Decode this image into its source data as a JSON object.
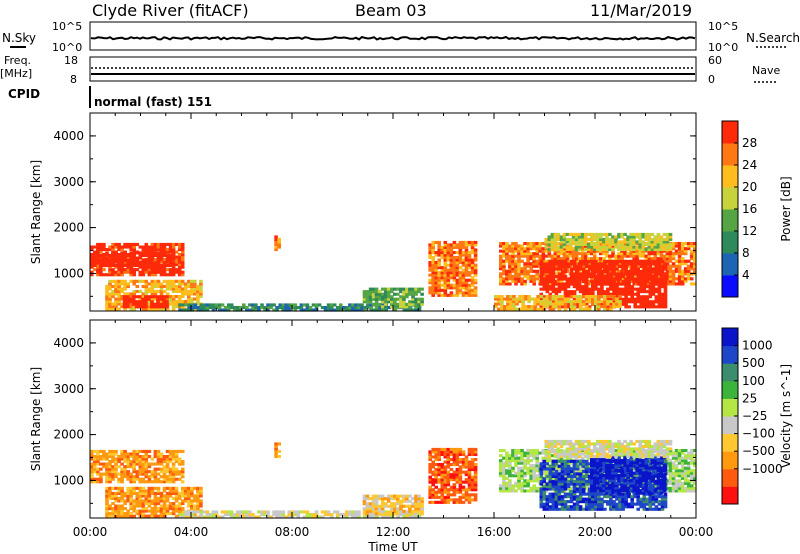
{
  "header": {
    "station": "Clyde River (fitACF)",
    "beam": "Beam 03",
    "date": "11/Mar/2019"
  },
  "aux_panels": {
    "nsky_label": "N.Sky",
    "nsky_tick_top": "10^5",
    "nsky_tick_bottom": "10^0",
    "nsearch_label": "N.Search",
    "nsearch_tick_top": "10^5",
    "nsearch_tick_bottom": "10^0",
    "freq_label": "Freq.",
    "freq_unit": "[MHz]",
    "freq_tick_top": "18",
    "freq_tick_bottom": "8",
    "nave_label": "Nave",
    "nave_tick_top": "60",
    "nave_tick_bottom": "0",
    "cpid_label": "CPID",
    "cpid_value": "normal (fast) 151"
  },
  "colors": {
    "power_scale": [
      "#0a0aff",
      "#1e64b4",
      "#2e8a5a",
      "#55a545",
      "#c8d23c",
      "#ffbe1e",
      "#ff7814",
      "#ff2a0a"
    ],
    "velocity_scale": [
      "#ff1010",
      "#ff5a10",
      "#ff9a10",
      "#ffc830",
      "#c8c8c8",
      "#b4e646",
      "#3cb43c",
      "#3c8c6e",
      "#1e46c8",
      "#0a14c8"
    ]
  },
  "chart_data": [
    {
      "type": "heatmap",
      "name": "power-panel",
      "ylabel": "Slant Range [km]",
      "xlabel": "",
      "ylim": [
        180,
        4500
      ],
      "xlim": [
        "00:00",
        "24:00"
      ],
      "yticks": [
        "1000",
        "2000",
        "3000",
        "4000"
      ],
      "xticks": [
        "00:00",
        "04:00",
        "08:00",
        "12:00",
        "16:00",
        "20:00",
        "00:00"
      ],
      "colorbar": {
        "label": "Power [dB]",
        "ticks": [
          "4",
          "8",
          "12",
          "16",
          "20",
          "24",
          "28"
        ]
      },
      "regions": [
        {
          "t0": 0.0,
          "t1": 3.7,
          "r0": 950,
          "r1": 1650,
          "level": 7
        },
        {
          "t0": 0.0,
          "t1": 3.3,
          "r0": 1150,
          "r1": 1450,
          "level": 8
        },
        {
          "t0": 0.6,
          "t1": 4.4,
          "r0": 200,
          "r1": 850,
          "level": 5
        },
        {
          "t0": 1.3,
          "t1": 3.1,
          "r0": 250,
          "r1": 500,
          "level": 8
        },
        {
          "t0": 3.5,
          "t1": 13.0,
          "r0": 180,
          "r1": 320,
          "level": 2
        },
        {
          "t0": 10.8,
          "t1": 13.1,
          "r0": 250,
          "r1": 650,
          "level": 3
        },
        {
          "t0": 13.4,
          "t1": 15.2,
          "r0": 500,
          "r1": 1700,
          "level": 6
        },
        {
          "t0": 16.2,
          "t1": 24.0,
          "r0": 750,
          "r1": 1650,
          "level": 6
        },
        {
          "t0": 17.8,
          "t1": 22.8,
          "r0": 250,
          "r1": 1250,
          "level": 8
        },
        {
          "t0": 18.0,
          "t1": 23.0,
          "r0": 1500,
          "r1": 1850,
          "level": 4
        },
        {
          "t0": 16.0,
          "t1": 21.0,
          "r0": 200,
          "r1": 500,
          "level": 5
        },
        {
          "t0": 7.3,
          "t1": 7.45,
          "r0": 1500,
          "r1": 1800,
          "level": 6
        }
      ]
    },
    {
      "type": "heatmap",
      "name": "velocity-panel",
      "ylabel": "Slant Range [km]",
      "xlabel": "Time UT",
      "ylim": [
        180,
        4500
      ],
      "xlim": [
        "00:00",
        "24:00"
      ],
      "yticks": [
        "1000",
        "2000",
        "3000",
        "4000"
      ],
      "xticks": [
        "00:00",
        "04:00",
        "08:00",
        "12:00",
        "16:00",
        "20:00",
        "00:00"
      ],
      "colorbar": {
        "label": "Velocity [m s^-1]",
        "ticks": [
          "1000",
          "500",
          "100",
          "25",
          "−25",
          "−100",
          "−500",
          "−1000"
        ]
      },
      "regions": [
        {
          "t0": 0.0,
          "t1": 3.7,
          "r0": 950,
          "r1": 1650,
          "level": 2
        },
        {
          "t0": 0.6,
          "t1": 4.4,
          "r0": 200,
          "r1": 850,
          "level": 2
        },
        {
          "t0": 3.5,
          "t1": 13.0,
          "r0": 180,
          "r1": 320,
          "level": 4
        },
        {
          "t0": 10.8,
          "t1": 13.1,
          "r0": 250,
          "r1": 650,
          "level": 3
        },
        {
          "t0": 13.4,
          "t1": 15.2,
          "r0": 500,
          "r1": 1700,
          "level": 1
        },
        {
          "t0": 16.2,
          "t1": 24.0,
          "r0": 750,
          "r1": 1650,
          "level": 5
        },
        {
          "t0": 17.8,
          "t1": 22.8,
          "r0": 350,
          "r1": 1450,
          "level": 8
        },
        {
          "t0": 19.8,
          "t1": 22.8,
          "r0": 700,
          "r1": 1500,
          "level": 9
        },
        {
          "t0": 18.0,
          "t1": 23.0,
          "r0": 1500,
          "r1": 1850,
          "level": 4
        },
        {
          "t0": 7.3,
          "t1": 7.45,
          "r0": 1500,
          "r1": 1800,
          "level": 2
        }
      ]
    }
  ]
}
